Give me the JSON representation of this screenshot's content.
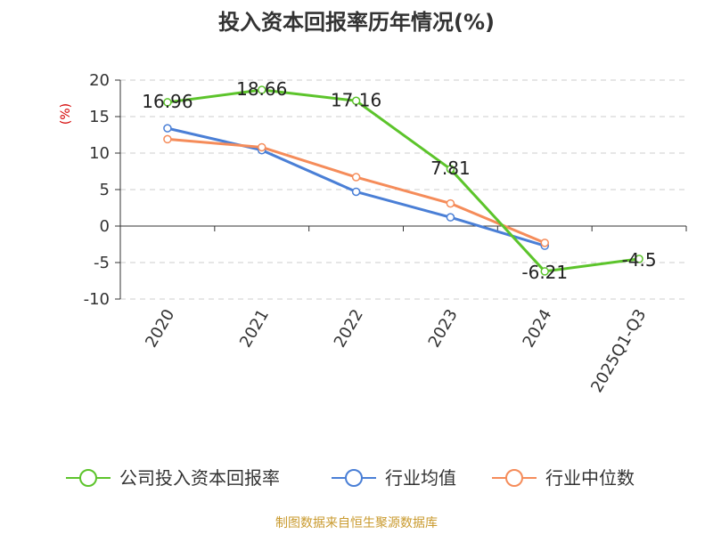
{
  "chart_data": {
    "type": "line",
    "title": "投入资本回报率历年情况(%)",
    "unit_label": "(%)",
    "categories": [
      "2020",
      "2021",
      "2022",
      "2023",
      "2024",
      "2025Q1-Q3"
    ],
    "ylim": [
      -10,
      20
    ],
    "yticks": [
      20,
      15,
      10,
      5,
      0,
      -5,
      -10
    ],
    "ytick_labels": [
      "20",
      "15",
      "10",
      "5",
      "0",
      "-5",
      "-10"
    ],
    "grid": true,
    "legend_position": "bottom",
    "series": [
      {
        "name": "公司投入资本回报率",
        "color": "#5cc42b",
        "values": [
          16.96,
          18.66,
          17.16,
          7.81,
          -6.21,
          -4.5
        ],
        "labels": [
          "16.96",
          "18.66",
          "17.16",
          "7.81",
          "-6.21",
          "-4.5"
        ]
      },
      {
        "name": "行业均值",
        "color": "#4a7fd6",
        "values": [
          13.4,
          10.4,
          4.7,
          1.2,
          -2.7,
          null
        ]
      },
      {
        "name": "行业中位数",
        "color": "#f58c5a",
        "values": [
          11.9,
          10.8,
          6.7,
          3.1,
          -2.3,
          null
        ]
      }
    ],
    "source": "制图数据来自恒生聚源数据库"
  }
}
